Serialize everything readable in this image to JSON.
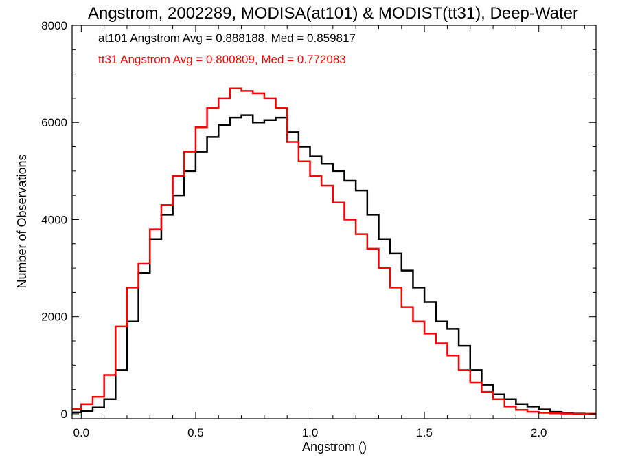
{
  "chart_data": {
    "type": "line",
    "title": "Angstrom, 2002289, MODISA(at101) & MODIST(tt31), Deep-Water",
    "xlabel": "Angstrom ()",
    "ylabel": "Number of Observations",
    "xlim": [
      -0.04,
      2.25
    ],
    "ylim": [
      -100,
      8000
    ],
    "xticks": [
      0.0,
      0.5,
      1.0,
      1.5,
      2.0
    ],
    "xtick_labels": [
      "0.0",
      "0.5",
      "1.0",
      "1.5",
      "2.0"
    ],
    "yticks": [
      0,
      2000,
      4000,
      6000,
      8000
    ],
    "ytick_labels": [
      "0",
      "2000",
      "4000",
      "6000",
      "8000"
    ],
    "grid": false,
    "annotations": [
      {
        "text": "at101 Angstrom Avg = 0.888188, Med = 0.859817",
        "color": "#000000"
      },
      {
        "text": "tt31 Angstrom Avg = 0.800809, Med = 0.772083",
        "color": "#ff0000"
      }
    ],
    "series": [
      {
        "color": "#000000",
        "x": [
          -0.04,
          0.0,
          0.05,
          0.1,
          0.15,
          0.2,
          0.25,
          0.3,
          0.35,
          0.4,
          0.45,
          0.5,
          0.55,
          0.6,
          0.65,
          0.7,
          0.75,
          0.8,
          0.85,
          0.9,
          0.95,
          1.0,
          1.05,
          1.1,
          1.15,
          1.2,
          1.25,
          1.3,
          1.35,
          1.4,
          1.45,
          1.5,
          1.55,
          1.6,
          1.65,
          1.7,
          1.75,
          1.8,
          1.85,
          1.9,
          1.95,
          2.0,
          2.05,
          2.1,
          2.15,
          2.2,
          2.25
        ],
        "y": [
          30,
          60,
          130,
          300,
          900,
          1900,
          2900,
          3600,
          4100,
          4500,
          5000,
          5400,
          5700,
          5950,
          6100,
          6150,
          6000,
          6050,
          6100,
          5800,
          5500,
          5300,
          5150,
          5000,
          4800,
          4600,
          4100,
          3600,
          3300,
          2950,
          2600,
          2300,
          1900,
          1750,
          1400,
          900,
          600,
          400,
          300,
          200,
          150,
          90,
          40,
          15,
          5,
          0,
          0
        ]
      },
      {
        "color": "#ff0000",
        "x": [
          -0.04,
          0.0,
          0.05,
          0.1,
          0.15,
          0.2,
          0.25,
          0.3,
          0.35,
          0.4,
          0.45,
          0.5,
          0.55,
          0.6,
          0.65,
          0.7,
          0.75,
          0.8,
          0.85,
          0.9,
          0.95,
          1.0,
          1.05,
          1.1,
          1.15,
          1.2,
          1.25,
          1.3,
          1.35,
          1.4,
          1.45,
          1.5,
          1.55,
          1.6,
          1.65,
          1.7,
          1.75,
          1.8,
          1.85,
          1.9,
          1.95,
          2.0,
          2.05,
          2.1,
          2.15,
          2.2,
          2.25
        ],
        "y": [
          100,
          200,
          350,
          800,
          1800,
          2600,
          3100,
          3800,
          4300,
          4900,
          5400,
          5900,
          6300,
          6500,
          6700,
          6650,
          6600,
          6500,
          6300,
          5600,
          5200,
          4900,
          4700,
          4350,
          4000,
          3700,
          3400,
          3000,
          2600,
          2200,
          1900,
          1650,
          1450,
          1200,
          900,
          650,
          450,
          300,
          150,
          80,
          40,
          20,
          10,
          5,
          0,
          0,
          0
        ]
      }
    ]
  }
}
